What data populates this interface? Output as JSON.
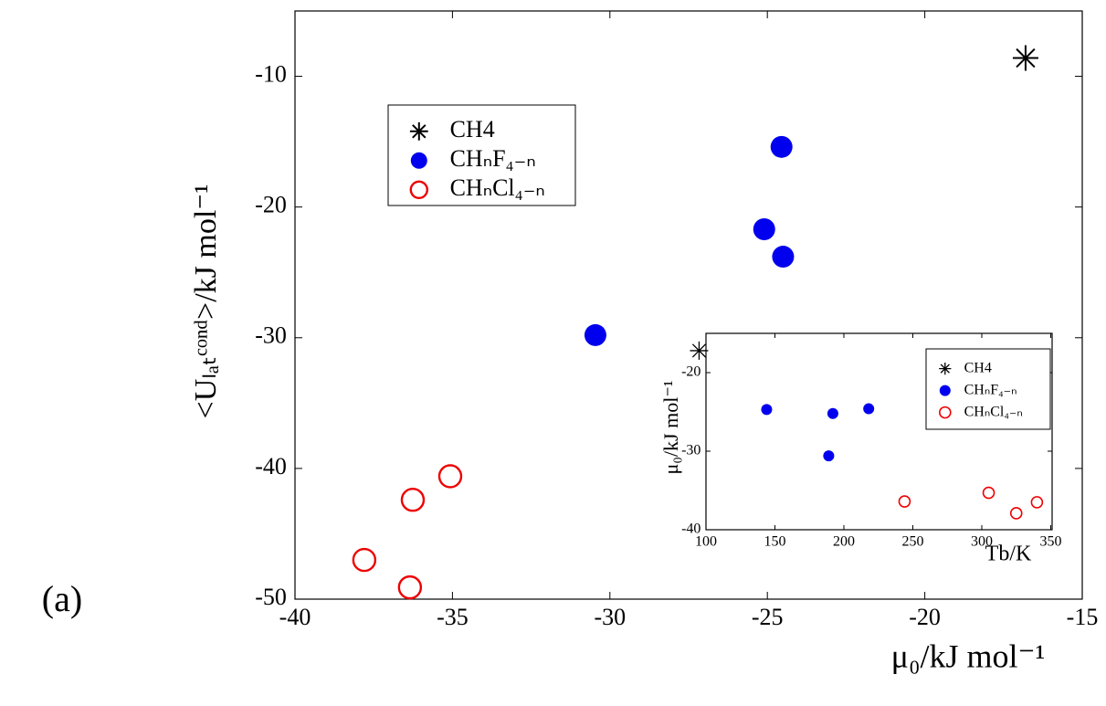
{
  "panel_label": "(a)",
  "chart_data": [
    {
      "type": "scatter",
      "xlabel": "μ₀/kJ mol⁻¹",
      "ylabel": "<Uₗₐₜᶜᵒⁿᵈ>/kJ mol⁻¹",
      "xlim": [
        -40,
        -15
      ],
      "xticks": [
        -40,
        -35,
        -30,
        -25,
        -20,
        -15
      ],
      "ylim": [
        -50,
        -5
      ],
      "yticks": [
        -10,
        -20,
        -30,
        -40,
        -50
      ],
      "legend": "upper left",
      "series": [
        {
          "name": "CH4",
          "color": "#000000",
          "marker": "star",
          "x": [
            -16.8
          ],
          "values": [
            -8.6
          ]
        },
        {
          "name": "CHₙF₄₋ₙ",
          "color": "#0000ee",
          "marker": "circle",
          "x": [
            -24.55,
            -25.1,
            -24.5,
            -30.46
          ],
          "values": [
            -15.4,
            -21.7,
            -23.8,
            -29.8
          ]
        },
        {
          "name": "CHₙCl₄₋ₙ",
          "color": "#ee0000",
          "marker": "open-circle",
          "x": [
            -35.07,
            -36.26,
            -37.8,
            -36.35
          ],
          "values": [
            -40.6,
            -42.4,
            -47.0,
            -49.1
          ]
        }
      ]
    },
    {
      "type": "scatter",
      "xlabel": "Tb/K",
      "ylabel": "μ₀/kJ mol⁻¹",
      "xlim": [
        100,
        351
      ],
      "xticks": [
        100,
        150,
        200,
        250,
        300,
        350
      ],
      "ylim": [
        -40,
        -15
      ],
      "yticks": [
        -20,
        -30,
        -40
      ],
      "legend": "upper right",
      "series": [
        {
          "name": "CH4",
          "color": "#000000",
          "marker": "star",
          "x": [
            95
          ],
          "values": [
            -17.2
          ]
        },
        {
          "name": "CHₙF₄₋ₙ",
          "color": "#0000ee",
          "marker": "circle",
          "x": [
            144,
            192,
            218,
            189
          ],
          "values": [
            -24.7,
            -25.2,
            -24.6,
            -30.6
          ]
        },
        {
          "name": "CHₙCl₄₋ₙ",
          "color": "#ee0000",
          "marker": "open-circle",
          "x": [
            244,
            305,
            325,
            340
          ],
          "values": [
            -36.4,
            -35.3,
            -37.9,
            -36.5
          ]
        }
      ]
    }
  ]
}
